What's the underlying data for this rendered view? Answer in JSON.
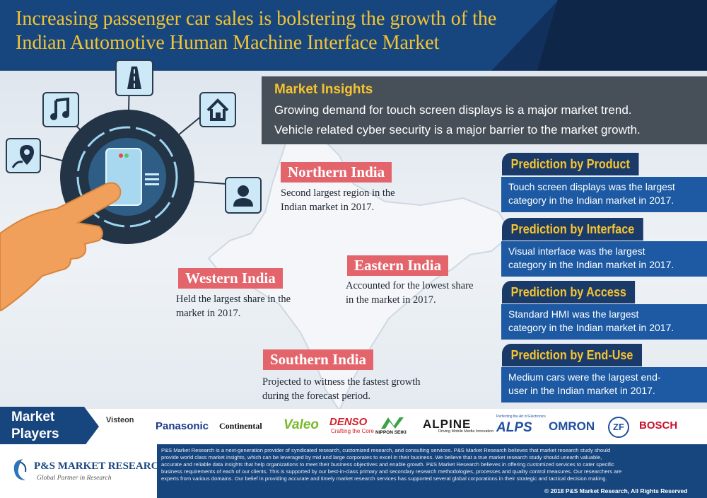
{
  "title_lines": [
    "Increasing passenger car sales is bolstering the growth of the",
    "Indian Automotive Human Machine Interface Market"
  ],
  "market_insights": {
    "title": "Market Insights",
    "items": [
      "Growing demand for touch screen displays is a major market trend.",
      "Vehicle related cyber security is a major barrier to the market growth."
    ]
  },
  "regions": [
    {
      "name": "Northern India",
      "lines": [
        "Second largest region in the",
        "Indian market in 2017."
      ]
    },
    {
      "name": "Western India",
      "lines": [
        "Held the largest share in the",
        "market in 2017."
      ]
    },
    {
      "name": "Eastern India",
      "lines": [
        "Accounted for the lowest share",
        "in the market in 2017."
      ]
    },
    {
      "name": "Southern India",
      "lines": [
        "Projected to witness the fastest growth",
        "during the forecast period."
      ]
    }
  ],
  "predictions": [
    {
      "title": "Prediction by Product",
      "lines": [
        "Touch screen displays was the largest",
        "category in the Indian market in 2017."
      ]
    },
    {
      "title": "Prediction by Interface",
      "lines": [
        "Visual interface was the largest",
        "category in the Indian market in 2017."
      ]
    },
    {
      "title": "Prediction by Access",
      "lines": [
        "Standard HMI was the largest",
        "category in the Indian market in 2017."
      ]
    },
    {
      "title": "Prediction by End-Use",
      "lines": [
        "Medium cars were the largest end-",
        "user in the Indian market in 2017."
      ]
    }
  ],
  "market_players": {
    "label_lines": [
      "Market",
      "Players"
    ],
    "logos": [
      {
        "name": "Visteon",
        "color": "#333333"
      },
      {
        "name": "Panasonic",
        "color": "#1a3a8a"
      },
      {
        "name": "Continental",
        "color": "#111111"
      },
      {
        "name": "Valeo",
        "color": "#78b82a"
      },
      {
        "name": "DENSO",
        "color": "#d3202a"
      },
      {
        "name": "Crafting the Core",
        "color": "#d3202a"
      },
      {
        "name": "NIPPON SEIKI",
        "color": "#111111"
      },
      {
        "name": "ALPINE",
        "color": "#1a1a1a"
      },
      {
        "name": "Driving Mobile Media Innovation",
        "color": "#1a1a1a"
      },
      {
        "name": "ALPS",
        "color": "#1f4fa0"
      },
      {
        "name": "Perfecting the Art of Electronics",
        "color": "#1f4fa0"
      },
      {
        "name": "OMRON",
        "color": "#1f4fa0"
      },
      {
        "name": "ZF",
        "color": "#1f4fa0"
      },
      {
        "name": "BOSCH",
        "color": "#c8102e"
      }
    ]
  },
  "footer": {
    "brand": "P&S MARKET RESEARCH",
    "tagline": "Global Partner in Research",
    "lines": [
      "P&S Market Research is a next-generation provider of syndicated research, customized research, and consulting services. P&S Market Research believes that market research study should",
      "provide world class market insights, which can be leveraged by mid and large corporates to excel in their business. We believe that a true market research study should unearth valuable,",
      "accurate and reliable data insights that help organizations to meet their business objectives and enable growth. P&S Market Research believes in offering customized services to cater specific",
      "business requirements of each of our clients. This is supported by our best-in-class primary and secondary research methodologies, processes and quality control measures. Our researchers are",
      "experts from various domains. Our belief in providing accurate and timely market research services has supported several global corporations in their strategic and tactical decision making."
    ],
    "copyright": "© 2018 P&S Market Research, All Rights Reserved"
  },
  "icons": [
    "road-icon",
    "music-note-icon",
    "home-icon",
    "map-pin-icon",
    "user-icon",
    "touch-screen-icon",
    "pointing-hand-icon"
  ],
  "colors": {
    "header_blue": "#17467f",
    "title_gold": "#f5c430",
    "region_red": "#e4646c",
    "prediction_blue": "#1d5aa3"
  }
}
